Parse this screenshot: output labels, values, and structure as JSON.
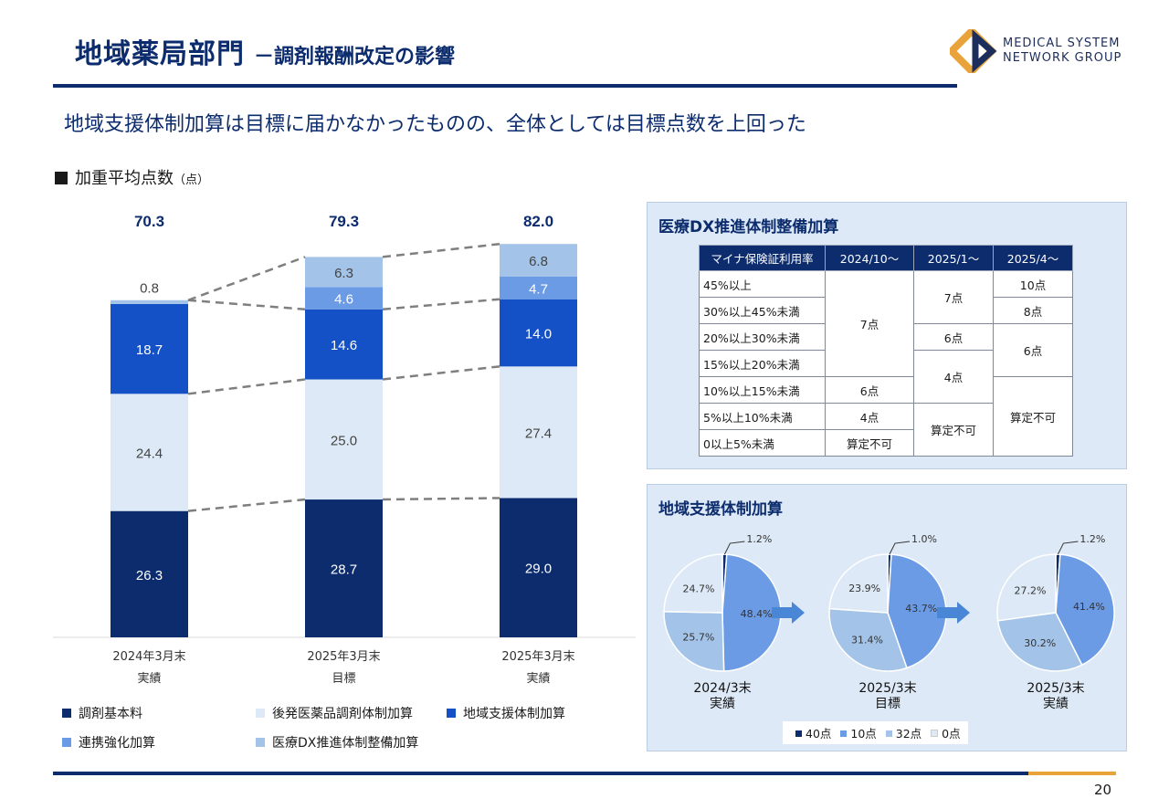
{
  "header": {
    "title": "地域薬局部門",
    "subtitle": "－調剤報酬改定の影響",
    "logo_line1": "MEDICAL SYSTEM",
    "logo_line2": "NETWORK GROUP"
  },
  "headline": "地域支援体制加算は目標に届かなかったものの、全体としては目標点数を上回った",
  "section": {
    "label": "加重平均点数",
    "unit": "（点）"
  },
  "chart_data": [
    {
      "type": "bar",
      "stacked": true,
      "categories": [
        "2024年3月末\n実績",
        "2025年3月末\n目標",
        "2025年3月末\n実績"
      ],
      "totals": [
        "70.3",
        "79.3",
        "82.0"
      ],
      "series": [
        {
          "name": "調剤基本料",
          "color": "#0c2c6e",
          "values": [
            26.3,
            28.7,
            29.0
          ]
        },
        {
          "name": "後発医薬品調剤体制加算",
          "color": "#dde9f6",
          "values": [
            24.4,
            25.0,
            27.4
          ]
        },
        {
          "name": "地域支援体制加算",
          "color": "#1450c6",
          "values": [
            18.7,
            14.6,
            14.0
          ]
        },
        {
          "name": "連携強化加算",
          "color": "#6c9be6",
          "values": [
            0,
            4.6,
            4.7
          ]
        },
        {
          "name": "医療DX推進体制整備加算",
          "color": "#a3c3e8",
          "values": [
            0.8,
            6.3,
            6.8
          ]
        }
      ],
      "label_texts": [
        [
          "26.3",
          "24.4",
          "18.7",
          "",
          "0.8"
        ],
        [
          "28.7",
          "25.0",
          "14.6",
          "4.6",
          "6.3"
        ],
        [
          "29.0",
          "27.4",
          "14.0",
          "4.7",
          "6.8"
        ]
      ]
    },
    {
      "type": "pie",
      "title": "地域支援体制加算",
      "labels": [
        "40点",
        "10点",
        "32点",
        "0点"
      ],
      "colors": [
        "#0c2c6e",
        "#6c9be6",
        "#a3c3e8",
        "#dde9f6"
      ],
      "pies": [
        {
          "caption": "2024/3末\n実績",
          "values": [
            1.2,
            48.4,
            25.7,
            24.7
          ],
          "value_texts": [
            "1.2%",
            "48.4%",
            "25.7%",
            "24.7%"
          ]
        },
        {
          "caption": "2025/3末\n目標",
          "values": [
            1.0,
            43.7,
            31.4,
            23.9
          ],
          "value_texts": [
            "1.0%",
            "43.7%",
            "31.4%",
            "23.9%"
          ]
        },
        {
          "caption": "2025/3末\n実績",
          "values": [
            1.2,
            41.4,
            30.2,
            27.2
          ],
          "value_texts": [
            "1.2%",
            "41.4%",
            "30.2%",
            "27.2%"
          ]
        }
      ]
    }
  ],
  "dx_table": {
    "title": "医療DX推進体制整備加算",
    "headers": [
      "マイナ保険証利用率",
      "2024/10～",
      "2025/1～",
      "2025/4～"
    ],
    "rows": [
      "45%以上",
      "30%以上45%未満",
      "20%以上30%未満",
      "15%以上20%未満",
      "10%以上15%未満",
      "5%以上10%未満",
      "0以上5%未満"
    ],
    "c1": [
      "7点",
      "6点",
      "4点",
      "算定不可"
    ],
    "c2": [
      "7点",
      "6点",
      "4点",
      "算定不可"
    ],
    "c3": [
      "10点",
      "8点",
      "6点",
      "算定不可"
    ]
  },
  "page_number": "20"
}
